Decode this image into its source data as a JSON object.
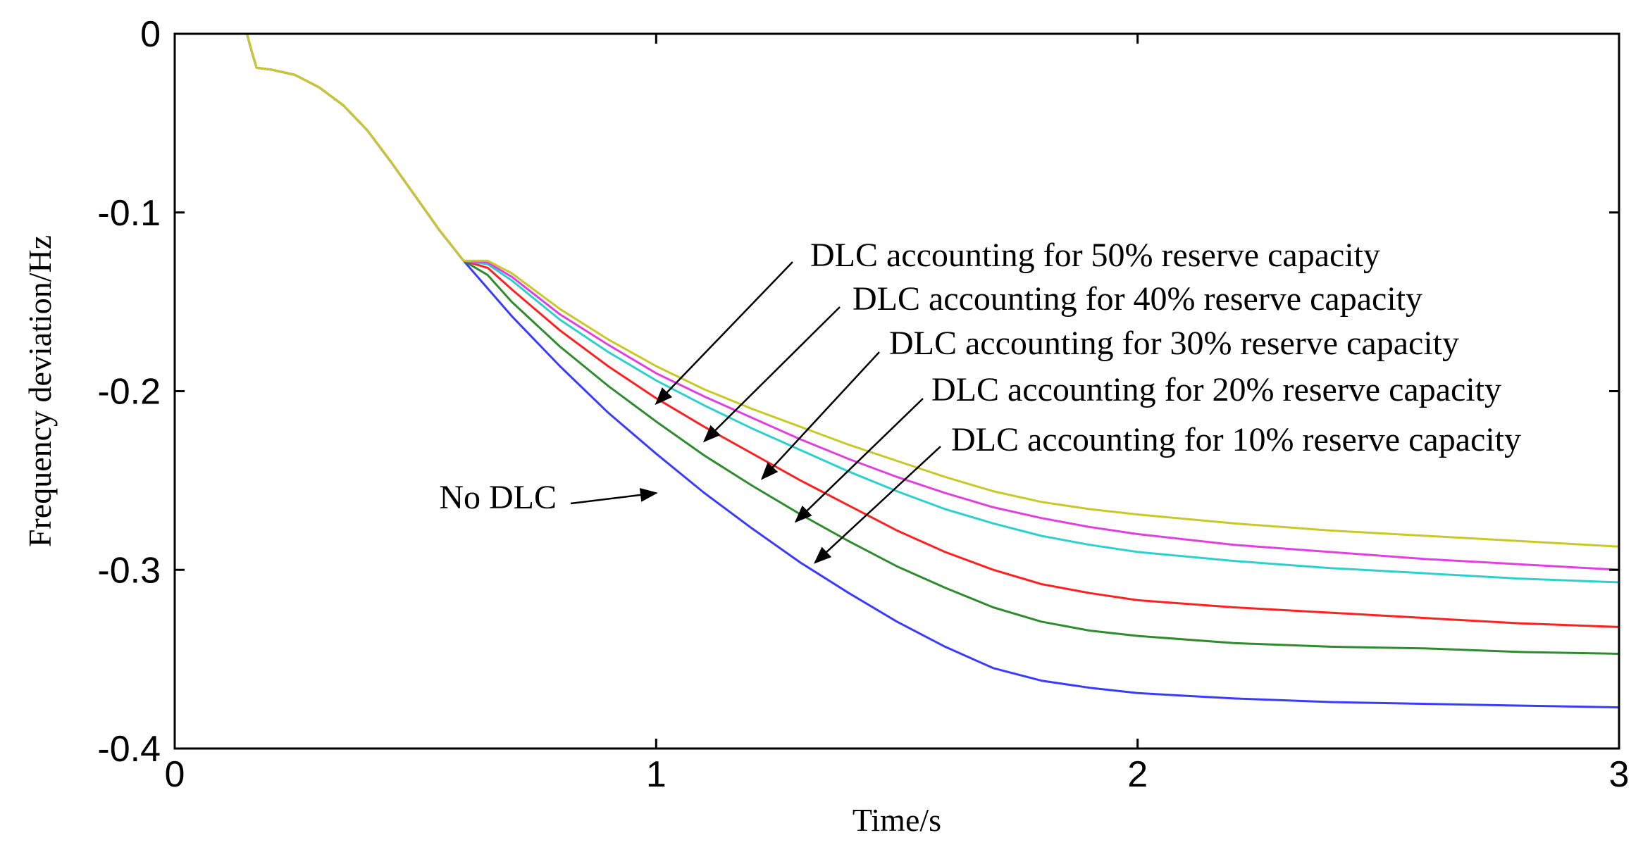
{
  "chart_data": {
    "type": "line",
    "title": "",
    "xlabel": "Time/s",
    "ylabel": "Frequency deviation/Hz",
    "xlim": [
      0,
      3
    ],
    "ylim": [
      -0.4,
      0
    ],
    "xticks": [
      0,
      1,
      2,
      3
    ],
    "xtick_labels": [
      "0",
      "1",
      "2",
      "3"
    ],
    "yticks": [
      0,
      -0.1,
      -0.2,
      -0.3,
      -0.4
    ],
    "ytick_labels": [
      "0",
      "-0.1",
      "-0.2",
      "-0.3",
      "-0.4"
    ],
    "grid": false,
    "series": [
      {
        "name": "No DLC",
        "color": "#3b3bff",
        "x": [
          0,
          0.15,
          0.16,
          0.17,
          0.2,
          0.25,
          0.3,
          0.35,
          0.4,
          0.45,
          0.5,
          0.55,
          0.6,
          0.7,
          0.8,
          0.9,
          1.0,
          1.1,
          1.2,
          1.3,
          1.4,
          1.5,
          1.6,
          1.7,
          1.8,
          1.9,
          2.0,
          2.2,
          2.4,
          2.6,
          2.8,
          3.0
        ],
        "y": [
          0,
          0,
          -0.01,
          -0.019,
          -0.02,
          -0.023,
          -0.03,
          -0.04,
          -0.054,
          -0.072,
          -0.091,
          -0.11,
          -0.127,
          -0.158,
          -0.186,
          -0.212,
          -0.235,
          -0.257,
          -0.277,
          -0.296,
          -0.313,
          -0.329,
          -0.343,
          -0.355,
          -0.362,
          -0.366,
          -0.369,
          -0.372,
          -0.374,
          -0.375,
          -0.376,
          -0.377
        ]
      },
      {
        "name": "DLC accounting for 10% reserve capacity",
        "color": "#2e8b2e",
        "x": [
          0,
          0.15,
          0.16,
          0.17,
          0.2,
          0.25,
          0.3,
          0.35,
          0.4,
          0.45,
          0.5,
          0.55,
          0.6,
          0.65,
          0.7,
          0.8,
          0.9,
          1.0,
          1.1,
          1.2,
          1.3,
          1.4,
          1.5,
          1.6,
          1.7,
          1.8,
          1.9,
          2.0,
          2.2,
          2.4,
          2.6,
          2.8,
          3.0
        ],
        "y": [
          0,
          0,
          -0.01,
          -0.019,
          -0.02,
          -0.023,
          -0.03,
          -0.04,
          -0.054,
          -0.072,
          -0.091,
          -0.11,
          -0.127,
          -0.135,
          -0.15,
          -0.175,
          -0.197,
          -0.217,
          -0.236,
          -0.253,
          -0.269,
          -0.284,
          -0.298,
          -0.31,
          -0.321,
          -0.329,
          -0.334,
          -0.337,
          -0.341,
          -0.343,
          -0.344,
          -0.346,
          -0.347
        ]
      },
      {
        "name": "DLC accounting for 20% reserve capacity",
        "color": "#ff2020",
        "x": [
          0,
          0.15,
          0.16,
          0.17,
          0.2,
          0.25,
          0.3,
          0.35,
          0.4,
          0.45,
          0.5,
          0.55,
          0.6,
          0.65,
          0.7,
          0.8,
          0.9,
          1.0,
          1.1,
          1.2,
          1.3,
          1.4,
          1.5,
          1.6,
          1.7,
          1.8,
          1.9,
          2.0,
          2.2,
          2.4,
          2.6,
          2.8,
          3.0
        ],
        "y": [
          0,
          0,
          -0.01,
          -0.019,
          -0.02,
          -0.023,
          -0.03,
          -0.04,
          -0.054,
          -0.072,
          -0.091,
          -0.11,
          -0.127,
          -0.131,
          -0.143,
          -0.166,
          -0.186,
          -0.204,
          -0.22,
          -0.235,
          -0.25,
          -0.264,
          -0.278,
          -0.29,
          -0.3,
          -0.308,
          -0.313,
          -0.317,
          -0.321,
          -0.324,
          -0.327,
          -0.33,
          -0.332
        ]
      },
      {
        "name": "DLC accounting for 30% reserve capacity",
        "color": "#2ecfcf",
        "x": [
          0,
          0.15,
          0.16,
          0.17,
          0.2,
          0.25,
          0.3,
          0.35,
          0.4,
          0.45,
          0.5,
          0.55,
          0.6,
          0.65,
          0.7,
          0.8,
          0.9,
          1.0,
          1.1,
          1.2,
          1.3,
          1.4,
          1.5,
          1.6,
          1.7,
          1.8,
          1.9,
          2.0,
          2.2,
          2.4,
          2.6,
          2.8,
          3.0
        ],
        "y": [
          0,
          0,
          -0.01,
          -0.019,
          -0.02,
          -0.023,
          -0.03,
          -0.04,
          -0.054,
          -0.072,
          -0.091,
          -0.11,
          -0.127,
          -0.129,
          -0.138,
          -0.16,
          -0.178,
          -0.194,
          -0.208,
          -0.221,
          -0.233,
          -0.245,
          -0.256,
          -0.266,
          -0.274,
          -0.281,
          -0.286,
          -0.29,
          -0.295,
          -0.299,
          -0.302,
          -0.305,
          -0.307
        ]
      },
      {
        "name": "DLC accounting for 40% reserve capacity",
        "color": "#e040e0",
        "x": [
          0,
          0.15,
          0.16,
          0.17,
          0.2,
          0.25,
          0.3,
          0.35,
          0.4,
          0.45,
          0.5,
          0.55,
          0.6,
          0.65,
          0.7,
          0.8,
          0.9,
          1.0,
          1.1,
          1.2,
          1.3,
          1.4,
          1.5,
          1.6,
          1.7,
          1.8,
          1.9,
          2.0,
          2.2,
          2.4,
          2.6,
          2.8,
          3.0
        ],
        "y": [
          0,
          0,
          -0.01,
          -0.019,
          -0.02,
          -0.023,
          -0.03,
          -0.04,
          -0.054,
          -0.072,
          -0.091,
          -0.11,
          -0.127,
          -0.128,
          -0.136,
          -0.157,
          -0.174,
          -0.19,
          -0.203,
          -0.215,
          -0.227,
          -0.238,
          -0.248,
          -0.257,
          -0.265,
          -0.271,
          -0.276,
          -0.28,
          -0.286,
          -0.29,
          -0.294,
          -0.297,
          -0.3
        ]
      },
      {
        "name": "DLC accounting for 50% reserve capacity",
        "color": "#c8c828",
        "x": [
          0,
          0.15,
          0.16,
          0.17,
          0.2,
          0.25,
          0.3,
          0.35,
          0.4,
          0.45,
          0.5,
          0.55,
          0.6,
          0.65,
          0.7,
          0.8,
          0.9,
          1.0,
          1.1,
          1.2,
          1.3,
          1.4,
          1.5,
          1.6,
          1.7,
          1.8,
          1.9,
          2.0,
          2.2,
          2.4,
          2.6,
          2.8,
          3.0
        ],
        "y": [
          0,
          0,
          -0.01,
          -0.019,
          -0.02,
          -0.023,
          -0.03,
          -0.04,
          -0.054,
          -0.072,
          -0.091,
          -0.11,
          -0.127,
          -0.127,
          -0.134,
          -0.154,
          -0.171,
          -0.186,
          -0.199,
          -0.21,
          -0.22,
          -0.23,
          -0.239,
          -0.248,
          -0.256,
          -0.262,
          -0.266,
          -0.269,
          -0.274,
          -0.278,
          -0.281,
          -0.284,
          -0.287
        ]
      }
    ],
    "annotations": [
      {
        "text": "DLC accounting for 50% reserve capacity",
        "target": [
          1.0,
          -0.207
        ]
      },
      {
        "text": "DLC accounting for 40% reserve capacity",
        "target": [
          1.1,
          -0.228
        ]
      },
      {
        "text": "DLC accounting for 30% reserve capacity",
        "target": [
          1.22,
          -0.249
        ]
      },
      {
        "text": "DLC accounting for 20% reserve capacity",
        "target": [
          1.29,
          -0.273
        ]
      },
      {
        "text": "DLC accounting for 10% reserve capacity",
        "target": [
          1.33,
          -0.296
        ]
      },
      {
        "text": "No DLC",
        "target": [
          1.0,
          -0.257
        ]
      }
    ]
  }
}
